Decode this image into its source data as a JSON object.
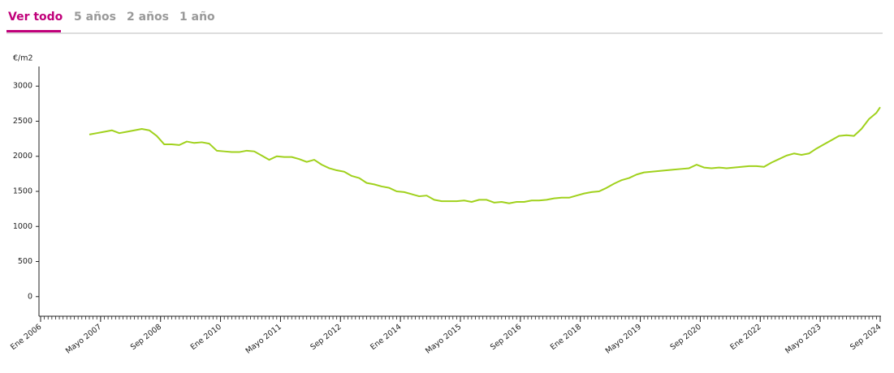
{
  "tabs": [
    "Ver todo",
    "5 años",
    "2 años",
    "1 año"
  ],
  "chart_data": {
    "type": "line",
    "y_label": "€/m2",
    "color": "#a0d11c",
    "x": [
      "2007-02",
      "2007-04",
      "2007-06",
      "2007-08",
      "2007-10",
      "2007-12",
      "2008-02",
      "2008-04",
      "2008-06",
      "2008-08",
      "2008-10",
      "2008-12",
      "2009-02",
      "2009-04",
      "2009-06",
      "2009-08",
      "2009-10",
      "2009-12",
      "2010-02",
      "2010-04",
      "2010-06",
      "2010-08",
      "2010-10",
      "2010-12",
      "2011-02",
      "2011-04",
      "2011-06",
      "2011-08",
      "2011-10",
      "2011-12",
      "2012-02",
      "2012-04",
      "2012-06",
      "2012-08",
      "2012-10",
      "2012-12",
      "2013-02",
      "2013-04",
      "2013-06",
      "2013-08",
      "2013-10",
      "2013-12",
      "2014-02",
      "2014-04",
      "2014-06",
      "2014-08",
      "2014-10",
      "2014-12",
      "2015-02",
      "2015-04",
      "2015-06",
      "2015-08",
      "2015-10",
      "2015-12",
      "2016-02",
      "2016-04",
      "2016-06",
      "2016-08",
      "2016-10",
      "2016-12",
      "2017-02",
      "2017-04",
      "2017-06",
      "2017-08",
      "2017-10",
      "2017-12",
      "2018-02",
      "2018-04",
      "2018-06",
      "2018-08",
      "2018-10",
      "2018-12",
      "2019-02",
      "2019-04",
      "2019-06",
      "2019-08",
      "2019-10",
      "2019-12",
      "2020-02",
      "2020-04",
      "2020-06",
      "2020-08",
      "2020-10",
      "2020-12",
      "2021-02",
      "2021-04",
      "2021-06",
      "2021-08",
      "2021-10",
      "2021-12",
      "2022-02",
      "2022-04",
      "2022-06",
      "2022-08",
      "2022-10",
      "2022-12",
      "2023-02",
      "2023-04",
      "2023-06",
      "2023-08",
      "2023-10",
      "2023-12",
      "2024-02",
      "2024-04",
      "2024-06",
      "2024-08",
      "2024-09"
    ],
    "values": [
      2310,
      2330,
      2350,
      2370,
      2330,
      2350,
      2370,
      2390,
      2370,
      2290,
      2170,
      2170,
      2160,
      2210,
      2190,
      2200,
      2180,
      2080,
      2070,
      2060,
      2060,
      2080,
      2070,
      2010,
      1950,
      2000,
      1990,
      1990,
      1960,
      1920,
      1950,
      1880,
      1830,
      1800,
      1780,
      1720,
      1690,
      1620,
      1600,
      1570,
      1550,
      1500,
      1490,
      1460,
      1430,
      1440,
      1380,
      1360,
      1360,
      1360,
      1370,
      1350,
      1380,
      1380,
      1340,
      1350,
      1330,
      1350,
      1350,
      1370,
      1370,
      1380,
      1400,
      1410,
      1410,
      1440,
      1470,
      1490,
      1500,
      1550,
      1610,
      1660,
      1690,
      1740,
      1770,
      1780,
      1790,
      1800,
      1810,
      1820,
      1830,
      1880,
      1840,
      1830,
      1840,
      1830,
      1840,
      1850,
      1860,
      1860,
      1850,
      1910,
      1960,
      2010,
      2040,
      2020,
      2040,
      2110,
      2170,
      2230,
      2290,
      2300,
      2290,
      2390,
      2530,
      2620,
      2700
    ],
    "xlim": [
      "2006-01",
      "2024-09"
    ],
    "xticks": [
      {
        "value": "2006-01",
        "label": "Ene 2006"
      },
      {
        "value": "2007-05",
        "label": "Mayo 2007"
      },
      {
        "value": "2008-09",
        "label": "Sep 2008"
      },
      {
        "value": "2010-01",
        "label": "Ene 2010"
      },
      {
        "value": "2011-05",
        "label": "Mayo 2011"
      },
      {
        "value": "2012-09",
        "label": "Sep 2012"
      },
      {
        "value": "2014-01",
        "label": "Ene 2014"
      },
      {
        "value": "2015-05",
        "label": "Mayo 2015"
      },
      {
        "value": "2016-09",
        "label": "Sep 2016"
      },
      {
        "value": "2018-01",
        "label": "Ene 2018"
      },
      {
        "value": "2019-05",
        "label": "Mayo 2019"
      },
      {
        "value": "2020-09",
        "label": "Sep 2020"
      },
      {
        "value": "2022-01",
        "label": "Ene 2022"
      },
      {
        "value": "2023-05",
        "label": "Mayo 2023"
      },
      {
        "value": "2024-09",
        "label": "Sep 2024"
      }
    ],
    "ylim": [
      -280,
      3280
    ],
    "yticks": [
      0,
      500,
      1000,
      1500,
      2000,
      2500,
      3000
    ]
  }
}
